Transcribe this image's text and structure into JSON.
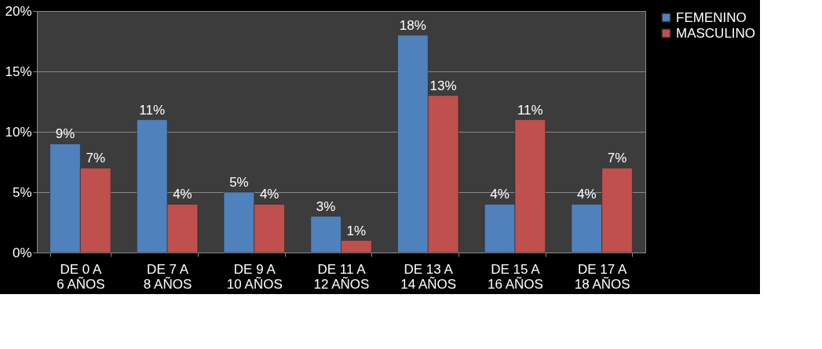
{
  "chart_data": {
    "type": "bar",
    "categories": [
      "DE 0 A 6 AÑOS",
      "DE 7 A 8 AÑOS",
      "DE 9 A 10 AÑOS",
      "DE 11 A 12 AÑOS",
      "DE 13 A 14 AÑOS",
      "DE 15 A 16 AÑOS",
      "DE 17 A 18 AÑOS"
    ],
    "series": [
      {
        "name": "FEMENINO",
        "color": "#4f81bd",
        "values": [
          9,
          11,
          5,
          3,
          18,
          4,
          4
        ],
        "value_labels": [
          "9%",
          "11%",
          "5%",
          "3%",
          "18%",
          "4%",
          "4%"
        ]
      },
      {
        "name": "MASCULINO",
        "color": "#c0504d",
        "values": [
          7,
          4,
          4,
          1,
          13,
          11,
          7
        ],
        "value_labels": [
          "7%",
          "4%",
          "4%",
          "1%",
          "13%",
          "11%",
          "7%"
        ]
      }
    ],
    "ylim": [
      0,
      20
    ],
    "yticks": [
      {
        "value": 0,
        "label": "0%"
      },
      {
        "value": 5,
        "label": "5%"
      },
      {
        "value": 10,
        "label": "10%"
      },
      {
        "value": 15,
        "label": "15%"
      },
      {
        "value": 20,
        "label": "20%"
      }
    ],
    "grid": "y",
    "legend": "right"
  }
}
